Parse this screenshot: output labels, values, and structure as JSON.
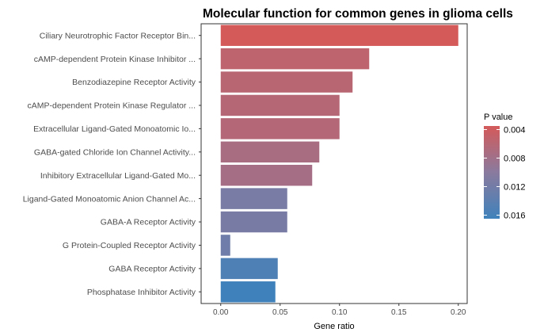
{
  "chart_data": {
    "type": "bar",
    "orientation": "horizontal",
    "title": "Molecular function for common genes in glioma cells",
    "xlabel": "Gene ratio",
    "ylabel": "",
    "xlim": [
      -0.0165,
      0.2075
    ],
    "x_ticks": [
      0.0,
      0.05,
      0.1,
      0.15,
      0.2
    ],
    "x_tick_labels": [
      "0.00",
      "0.05",
      "0.10",
      "0.15",
      "0.20"
    ],
    "categories": [
      "Ciliary Neurotrophic Factor Receptor Bin...",
      "cAMP-dependent Protein Kinase Inhibitor ...",
      "Benzodiazepine Receptor Activity",
      "cAMP-dependent Protein Kinase Regulator ...",
      "Extracellular Ligand-Gated Monoatomic Io...",
      "GABA-gated Chloride Ion Channel Activity...",
      "Inhibitory Extracellular Ligand-Gated Mo...",
      "Ligand-Gated Monoatomic Anion Channel Ac...",
      "GABA-A Receptor Activity",
      "G Protein-Coupled Receptor Activity",
      "GABA Receptor Activity",
      "Phosphatase Inhibitor Activity"
    ],
    "values": [
      0.2,
      0.125,
      0.111,
      0.1,
      0.1,
      0.083,
      0.077,
      0.056,
      0.056,
      0.008,
      0.048,
      0.046
    ],
    "p_values": [
      0.0035,
      0.0055,
      0.0059,
      0.0062,
      0.0063,
      0.0073,
      0.0075,
      0.0115,
      0.0116,
      0.0124,
      0.0152,
      0.0165
    ],
    "legend": {
      "title": "P value",
      "position": "right",
      "ticks": [
        0.004,
        0.008,
        0.012,
        0.016
      ],
      "tick_labels": [
        "0.004",
        "0.008",
        "0.012",
        "0.016"
      ],
      "range": [
        0.0035,
        0.0165
      ],
      "color_low": "#d45a5a",
      "color_mid": "#8a7a9e",
      "color_high": "#3f82bb"
    },
    "grid": false,
    "border": true
  }
}
